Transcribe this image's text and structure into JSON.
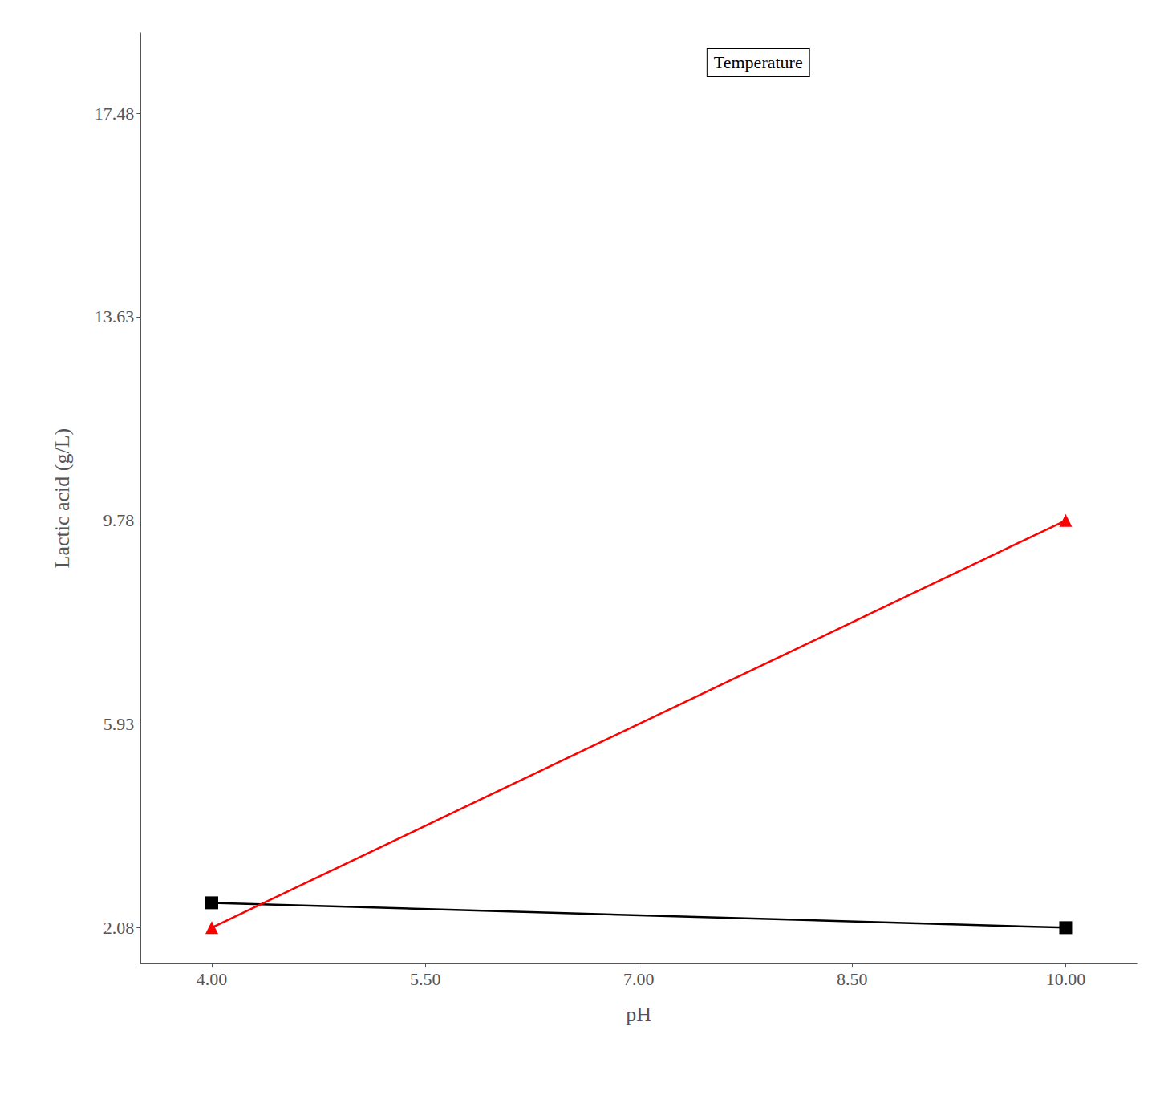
{
  "chart_data": {
    "type": "line",
    "xlabel": "pH",
    "ylabel": "Lactic acid (g/L)",
    "annotations": [
      "Temperature"
    ],
    "x": [
      4.0,
      10.0
    ],
    "series": [
      {
        "color": "#000000",
        "marker": "square",
        "values": [
          2.55,
          2.08
        ]
      },
      {
        "color": "#ff0000",
        "marker": "triangle",
        "values": [
          2.08,
          9.78
        ]
      }
    ],
    "xlim": [
      3.5,
      10.5
    ],
    "ylim": [
      1.4,
      19.0
    ],
    "xticks": [
      {
        "value": 4.0,
        "label": "4.00"
      },
      {
        "value": 5.5,
        "label": "5.50"
      },
      {
        "value": 7.0,
        "label": "7.00"
      },
      {
        "value": 8.5,
        "label": "8.50"
      },
      {
        "value": 10.0,
        "label": "10.00"
      }
    ],
    "yticks": [
      2.08,
      5.93,
      9.78,
      13.63,
      17.48
    ],
    "grid": false
  }
}
